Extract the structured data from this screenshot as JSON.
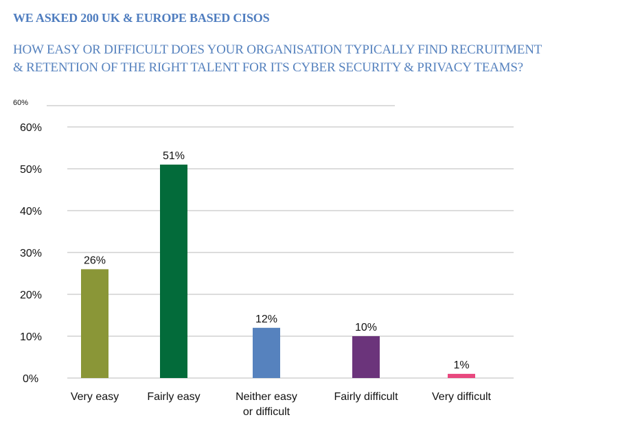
{
  "header": {
    "title": "WE ASKED 200 UK & EUROPE BASED CISOS",
    "subtitle_lines": [
      "HOW EASY OR DIFFICULT DOES YOUR ORGANISATION TYPICALLY FIND RECRUITMENT",
      "& RETENTION OF THE RIGHT TALENT FOR ITS CYBER SECURITY & PRIVACY TEAMS?"
    ]
  },
  "stray_axis_label": "60%",
  "chart_data": {
    "type": "bar",
    "title": "",
    "xlabel": "",
    "ylabel": "",
    "categories": [
      "Very easy",
      "Fairly easy",
      "Neither easy or difficult",
      "Fairly difficult",
      "Very difficult"
    ],
    "category_lines": [
      [
        "Very easy"
      ],
      [
        "Fairly easy"
      ],
      [
        "Neither easy",
        "or difficult"
      ],
      [
        "Fairly difficult"
      ],
      [
        "Very difficult"
      ]
    ],
    "values": [
      26,
      51,
      12,
      10,
      1
    ],
    "data_labels": [
      "26%",
      "51%",
      "12%",
      "10%",
      "1%"
    ],
    "colors": [
      "#8a9637",
      "#036b3a",
      "#5682be",
      "#6b347b",
      "#e8487e"
    ],
    "ylim": [
      0,
      60
    ],
    "yticks": [
      0,
      10,
      20,
      30,
      40,
      50,
      60
    ],
    "ytick_labels": [
      "0%",
      "10%",
      "20%",
      "30%",
      "40%",
      "50%",
      "60%"
    ],
    "grid": true,
    "legend": "none"
  }
}
